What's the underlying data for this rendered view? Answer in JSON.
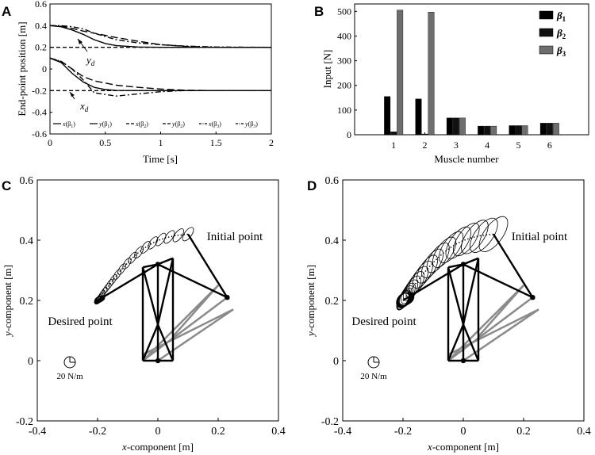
{
  "panels": {
    "a": "A",
    "b": "B",
    "c": "C",
    "d": "D"
  },
  "chart_data": [
    {
      "id": "A",
      "type": "line",
      "xlabel": "Time [s]",
      "ylabel": "End-point position [m]",
      "xlim": [
        0,
        2
      ],
      "ylim": [
        -0.6,
        0.6
      ],
      "xticks": [
        0,
        0.5,
        1,
        1.5,
        2
      ],
      "xtick_labels": [
        "0",
        "0.5",
        "1",
        "1.5",
        "2"
      ],
      "yticks": [
        -0.6,
        -0.4,
        -0.2,
        0,
        0.2,
        0.4,
        0.6
      ],
      "ytick_labels": [
        "-0.6",
        "-0.4",
        "-0.2",
        "0",
        "0.2",
        "0.4",
        "0.6"
      ],
      "annotations": {
        "yd": "y",
        "yd_sub": "d",
        "xd": "x",
        "xd_sub": "d"
      },
      "references": [
        {
          "name": "y_d",
          "value": 0.2,
          "style": "dashed"
        },
        {
          "name": "x_d",
          "value": -0.2,
          "style": "dashed"
        }
      ],
      "series": [
        {
          "name": "x(β1)",
          "style": "solid",
          "x": [
            0,
            0.1,
            0.2,
            0.3,
            0.4,
            0.5,
            0.6,
            0.8,
            1.0,
            1.2,
            2.0
          ],
          "y": [
            0.1,
            0.06,
            -0.04,
            -0.12,
            -0.17,
            -0.19,
            -0.198,
            -0.2,
            -0.2,
            -0.2,
            -0.2
          ]
        },
        {
          "name": "y(β1)",
          "style": "solid",
          "x": [
            0,
            0.1,
            0.2,
            0.3,
            0.4,
            0.5,
            0.6,
            0.8,
            1.0,
            1.2,
            2.0
          ],
          "y": [
            0.4,
            0.39,
            0.36,
            0.32,
            0.27,
            0.235,
            0.215,
            0.203,
            0.2,
            0.2,
            0.2
          ]
        },
        {
          "name": "x(β2)",
          "style": "longdash",
          "x": [
            0,
            0.1,
            0.2,
            0.3,
            0.4,
            0.6,
            0.8,
            1.0,
            1.2,
            1.5,
            2.0
          ],
          "y": [
            0.1,
            0.07,
            0.0,
            -0.07,
            -0.11,
            -0.15,
            -0.17,
            -0.185,
            -0.195,
            -0.2,
            -0.2
          ]
        },
        {
          "name": "y(β2)",
          "style": "longdash",
          "x": [
            0,
            0.1,
            0.2,
            0.3,
            0.4,
            0.6,
            0.8,
            1.0,
            1.2,
            1.5,
            2.0
          ],
          "y": [
            0.4,
            0.395,
            0.375,
            0.35,
            0.33,
            0.29,
            0.255,
            0.225,
            0.21,
            0.2,
            0.2
          ]
        },
        {
          "name": "x(β3)",
          "style": "dashdot",
          "x": [
            0,
            0.1,
            0.2,
            0.3,
            0.4,
            0.6,
            0.8,
            1.0,
            1.2,
            1.5,
            2.0
          ],
          "y": [
            0.1,
            0.07,
            0.0,
            -0.1,
            -0.22,
            -0.25,
            -0.23,
            -0.21,
            -0.2,
            -0.2,
            -0.2
          ]
        },
        {
          "name": "y(β3)",
          "style": "dashdot",
          "x": [
            0,
            0.1,
            0.2,
            0.3,
            0.4,
            0.6,
            0.8,
            1.0,
            1.2,
            1.5,
            2.0
          ],
          "y": [
            0.4,
            0.4,
            0.39,
            0.37,
            0.33,
            0.27,
            0.24,
            0.225,
            0.212,
            0.203,
            0.2
          ]
        }
      ],
      "legend": [
        {
          "var": "x",
          "idx": "1",
          "style": "solid"
        },
        {
          "var": "y",
          "idx": "1",
          "style": "solid"
        },
        {
          "var": "x",
          "idx": "2",
          "style": "longdash"
        },
        {
          "var": "y",
          "idx": "2",
          "style": "longdash"
        },
        {
          "var": "x",
          "idx": "3",
          "style": "dashdot"
        },
        {
          "var": "y",
          "idx": "3",
          "style": "dashdot"
        }
      ]
    },
    {
      "id": "B",
      "type": "bar",
      "xlabel": "Muscle number",
      "ylabel": "Input [N]",
      "categories": [
        "1",
        "2",
        "3",
        "4",
        "5",
        "6"
      ],
      "ylim": [
        0,
        530
      ],
      "yticks": [
        0,
        100,
        200,
        300,
        400,
        500
      ],
      "ytick_labels": [
        "0",
        "100",
        "200",
        "300",
        "400",
        "500"
      ],
      "series": [
        {
          "name": "β1",
          "color": "#000000",
          "values": [
            155,
            145,
            68,
            35,
            37,
            47
          ]
        },
        {
          "name": "β2",
          "color": "#111111",
          "values": [
            12,
            3,
            68,
            35,
            37,
            47
          ]
        },
        {
          "name": "β3",
          "color": "#6e6e6e",
          "values": [
            505,
            497,
            68,
            35,
            37,
            47
          ]
        }
      ],
      "legend_labels": [
        {
          "sym": "β",
          "idx": "1"
        },
        {
          "sym": "β",
          "idx": "2"
        },
        {
          "sym": "β",
          "idx": "3"
        }
      ]
    },
    {
      "id": "C",
      "type": "scatter",
      "xlabel_var": "x",
      "xlabel_rest": "-component [m]",
      "ylabel_var": "y",
      "ylabel_rest": "-component [m]",
      "xlim": [
        -0.4,
        0.4
      ],
      "ylim": [
        -0.2,
        0.6
      ],
      "xticks": [
        -0.4,
        -0.2,
        0,
        0.2,
        0.4
      ],
      "xtick_labels": [
        "-0.4",
        "-0.2",
        "0",
        "0.2",
        "0.4"
      ],
      "yticks": [
        -0.2,
        0,
        0.2,
        0.4,
        0.6
      ],
      "ytick_labels": [
        "-0.2",
        "0",
        "0.2",
        "0.4",
        "0.6"
      ],
      "annotations": {
        "initial": "Initial point",
        "desired": "Desired point",
        "scale": "20 N/m"
      },
      "ellipse_scale": 1.0
    },
    {
      "id": "D",
      "type": "scatter",
      "xlabel_var": "x",
      "xlabel_rest": "-component [m]",
      "ylabel_var": "y",
      "ylabel_rest": "-component [m]",
      "xlim": [
        -0.4,
        0.4
      ],
      "ylim": [
        -0.2,
        0.6
      ],
      "xticks": [
        -0.4,
        -0.2,
        0,
        0.2,
        0.4
      ],
      "xtick_labels": [
        "-0.4",
        "-0.2",
        "0",
        "0.2",
        "0.4"
      ],
      "yticks": [
        -0.2,
        0,
        0.2,
        0.4,
        0.6
      ],
      "ytick_labels": [
        "-0.2",
        "0",
        "0.2",
        "0.4",
        "0.6"
      ],
      "annotations": {
        "initial": "Initial point",
        "desired": "Desired point",
        "scale": "20 N/m"
      },
      "ellipse_scale": 2.6
    }
  ],
  "arm_geometry": {
    "shoulder_base": [
      0,
      0
    ],
    "upper_arm": [
      [
        0,
        0.32
      ],
      [
        0.23,
        0.21
      ]
    ],
    "start_hand": [
      0.1,
      0.42
    ],
    "end_hand": [
      -0.2,
      0.2
    ],
    "frame": [
      [
        -0.05,
        0
      ],
      [
        0.05,
        0
      ],
      [
        0.05,
        0.34
      ],
      [
        -0.05,
        0.31
      ],
      [
        0,
        0.12
      ]
    ],
    "muscles": [
      [
        0.23,
        0.21
      ],
      [
        0.25,
        0.17
      ],
      [
        0.2,
        0.25
      ],
      [
        0.05,
        0.08
      ],
      [
        0.0,
        0.0
      ],
      [
        -0.05,
        0.0
      ]
    ]
  }
}
